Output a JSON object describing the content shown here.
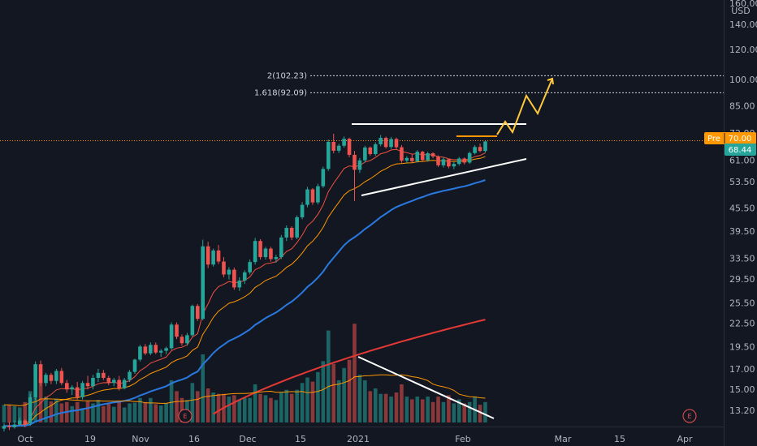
{
  "chart_data": {
    "type": "candlestick",
    "currency": "USD",
    "y_axis_ticks": [
      "160.00",
      "140.00",
      "120.00",
      "100.00",
      "85.00",
      "72.00",
      "61.00",
      "53.50",
      "45.50",
      "39.50",
      "33.50",
      "29.50",
      "25.50",
      "22.50",
      "19.50",
      "17.00",
      "15.00",
      "13.20"
    ],
    "x_axis_ticks": [
      "Oct",
      "19",
      "Nov",
      "16",
      "Dec",
      "15",
      "2021",
      "Feb",
      "Mar",
      "15",
      "Apr"
    ],
    "price_badges": [
      {
        "label": "Pre",
        "value": "70.00",
        "color": "#ff9800"
      },
      {
        "label": "",
        "value": "68.44",
        "color": "#26a69a"
      }
    ],
    "fib_levels": [
      {
        "label": "2(102.23)",
        "value": 102.23
      },
      {
        "label": "1.618(92.09)",
        "value": 92.09
      }
    ],
    "earnings_markers": [
      "E",
      "E"
    ],
    "ohlc": [
      [
        11.8,
        12.2,
        11.6,
        12.0
      ],
      [
        12.0,
        12.3,
        11.7,
        11.9
      ],
      [
        11.9,
        12.4,
        11.8,
        12.1
      ],
      [
        12.1,
        12.6,
        12.0,
        12.4
      ],
      [
        12.4,
        12.5,
        11.9,
        12.1
      ],
      [
        12.2,
        14.6,
        12.0,
        14.3
      ],
      [
        14.3,
        17.8,
        14.0,
        17.5
      ],
      [
        17.5,
        17.9,
        15.3,
        15.6
      ],
      [
        15.6,
        16.6,
        15.3,
        16.4
      ],
      [
        16.4,
        16.6,
        15.5,
        15.8
      ],
      [
        15.8,
        17.0,
        15.5,
        16.8
      ],
      [
        16.8,
        17.1,
        15.4,
        15.6
      ],
      [
        15.6,
        15.9,
        14.7,
        15.0
      ],
      [
        15.0,
        15.4,
        14.5,
        15.2
      ],
      [
        15.2,
        15.7,
        14.1,
        14.3
      ],
      [
        14.3,
        15.8,
        14.1,
        15.6
      ],
      [
        15.6,
        16.3,
        15.0,
        15.3
      ],
      [
        15.3,
        16.4,
        15.0,
        16.1
      ],
      [
        16.1,
        17.0,
        15.7,
        16.6
      ],
      [
        16.6,
        16.9,
        15.9,
        16.1
      ],
      [
        16.1,
        16.3,
        15.4,
        15.6
      ],
      [
        15.6,
        16.1,
        15.3,
        15.9
      ],
      [
        15.9,
        16.3,
        14.9,
        15.1
      ],
      [
        15.1,
        16.1,
        15.0,
        15.9
      ],
      [
        15.9,
        16.9,
        15.7,
        16.7
      ],
      [
        16.7,
        18.1,
        16.5,
        18.0
      ],
      [
        18.0,
        19.7,
        17.8,
        19.5
      ],
      [
        19.5,
        19.8,
        18.5,
        18.7
      ],
      [
        18.7,
        20.0,
        18.5,
        19.7
      ],
      [
        19.7,
        20.0,
        18.6,
        18.8
      ],
      [
        18.8,
        19.2,
        18.3,
        19.0
      ],
      [
        19.0,
        19.5,
        18.6,
        19.3
      ],
      [
        19.3,
        22.6,
        19.1,
        22.3
      ],
      [
        22.3,
        22.6,
        20.4,
        20.7
      ],
      [
        20.7,
        21.0,
        19.6,
        19.9
      ],
      [
        19.9,
        21.2,
        19.6,
        20.9
      ],
      [
        20.9,
        25.2,
        20.7,
        25.0
      ],
      [
        25.0,
        25.3,
        22.8,
        23.1
      ],
      [
        23.1,
        37.5,
        22.9,
        36.0
      ],
      [
        36.0,
        37.0,
        31.5,
        32.2
      ],
      [
        32.2,
        35.5,
        31.8,
        35.1
      ],
      [
        35.1,
        36.3,
        32.3,
        32.8
      ],
      [
        32.8,
        33.7,
        29.8,
        30.3
      ],
      [
        30.3,
        31.7,
        29.4,
        31.2
      ],
      [
        31.2,
        31.6,
        27.6,
        28.0
      ],
      [
        28.0,
        29.8,
        27.4,
        29.2
      ],
      [
        29.2,
        31.1,
        28.6,
        30.7
      ],
      [
        30.7,
        33.2,
        30.3,
        32.7
      ],
      [
        32.7,
        37.9,
        32.2,
        37.2
      ],
      [
        37.2,
        37.6,
        33.2,
        33.7
      ],
      [
        33.7,
        35.9,
        33.2,
        35.5
      ],
      [
        35.5,
        35.9,
        32.8,
        33.3
      ],
      [
        33.3,
        34.2,
        32.6,
        33.7
      ],
      [
        33.7,
        38.6,
        33.3,
        38.0
      ],
      [
        38.0,
        40.9,
        37.2,
        40.3
      ],
      [
        40.3,
        40.7,
        37.4,
        38.0
      ],
      [
        38.0,
        43.5,
        37.6,
        43.0
      ],
      [
        43.0,
        47.2,
        42.5,
        46.4
      ],
      [
        46.4,
        51.8,
        45.7,
        51.0
      ],
      [
        51.0,
        51.4,
        46.4,
        47.1
      ],
      [
        47.1,
        52.8,
        46.5,
        52.0
      ],
      [
        52.0,
        58.6,
        51.5,
        57.8
      ],
      [
        57.8,
        69.2,
        57.1,
        68.2
      ],
      [
        68.2,
        71.7,
        63.6,
        64.6
      ],
      [
        64.6,
        67.4,
        63.7,
        66.6
      ],
      [
        66.6,
        70.5,
        65.8,
        69.5
      ],
      [
        69.5,
        70.0,
        62.1,
        63.0
      ],
      [
        63.0,
        64.5,
        47.5,
        57.5
      ],
      [
        57.5,
        61.8,
        56.4,
        60.9
      ],
      [
        60.9,
        66.6,
        60.1,
        65.9
      ],
      [
        65.9,
        66.3,
        62.6,
        63.3
      ],
      [
        63.3,
        68.0,
        62.6,
        67.2
      ],
      [
        67.2,
        71.1,
        66.4,
        69.9
      ],
      [
        69.9,
        70.4,
        65.5,
        66.1
      ],
      [
        66.1,
        70.3,
        65.3,
        69.4
      ],
      [
        69.4,
        70.0,
        65.3,
        66.0
      ],
      [
        66.0,
        66.9,
        60.0,
        60.8
      ],
      [
        60.8,
        62.5,
        60.0,
        61.8
      ],
      [
        61.8,
        63.2,
        60.1,
        60.6
      ],
      [
        60.6,
        64.8,
        60.1,
        64.2
      ],
      [
        64.2,
        64.6,
        60.4,
        61.0
      ],
      [
        61.0,
        64.2,
        60.4,
        63.6
      ],
      [
        63.6,
        64.0,
        61.7,
        62.4
      ],
      [
        62.4,
        62.8,
        58.5,
        59.1
      ],
      [
        59.1,
        62.0,
        58.3,
        61.3
      ],
      [
        61.3,
        61.6,
        58.0,
        58.7
      ],
      [
        58.7,
        60.3,
        57.7,
        59.6
      ],
      [
        59.6,
        62.2,
        59.0,
        61.6
      ],
      [
        61.6,
        62.0,
        59.4,
        60.1
      ],
      [
        60.1,
        64.3,
        59.6,
        63.7
      ],
      [
        63.7,
        66.8,
        63.2,
        66.1
      ],
      [
        66.1,
        67.5,
        64.0,
        64.5
      ],
      [
        64.5,
        68.5,
        63.9,
        68.4
      ]
    ],
    "volume": [
      0.26,
      0.26,
      0.24,
      0.22,
      0.3,
      0.46,
      0.38,
      0.64,
      0.38,
      0.31,
      0.34,
      0.28,
      0.3,
      0.24,
      0.3,
      0.21,
      0.31,
      0.28,
      0.33,
      0.24,
      0.27,
      0.23,
      0.3,
      0.22,
      0.28,
      0.29,
      0.36,
      0.3,
      0.36,
      0.27,
      0.25,
      0.28,
      0.62,
      0.46,
      0.36,
      0.33,
      0.58,
      0.46,
      1.0,
      0.5,
      0.44,
      0.42,
      0.42,
      0.38,
      0.4,
      0.34,
      0.36,
      0.36,
      0.56,
      0.42,
      0.4,
      0.36,
      0.33,
      0.44,
      0.48,
      0.42,
      0.48,
      0.58,
      0.66,
      0.6,
      0.74,
      0.9,
      1.35,
      0.86,
      0.62,
      0.8,
      0.92,
      1.45,
      0.7,
      0.62,
      0.46,
      0.5,
      0.42,
      0.42,
      0.38,
      0.44,
      0.56,
      0.38,
      0.34,
      0.38,
      0.34,
      0.38,
      0.3,
      0.38,
      0.3,
      0.4,
      0.28,
      0.34,
      0.28,
      0.3,
      0.38,
      0.26,
      0.3
    ],
    "moving_averages": [
      {
        "color": "#f05040",
        "period": 10
      },
      {
        "color": "#ff9800",
        "period": 20
      },
      {
        "color": "#2979e0",
        "period": 50
      },
      {
        "color": "#e53935",
        "period": 200
      }
    ],
    "ylim": [
      12.8,
      160
    ],
    "log_scale": true,
    "grid": false,
    "colors": {
      "background": "#131722",
      "up": "#26a69a",
      "down": "#ef5350",
      "text": "#b2b5be",
      "projection": "#ffc83c"
    }
  }
}
